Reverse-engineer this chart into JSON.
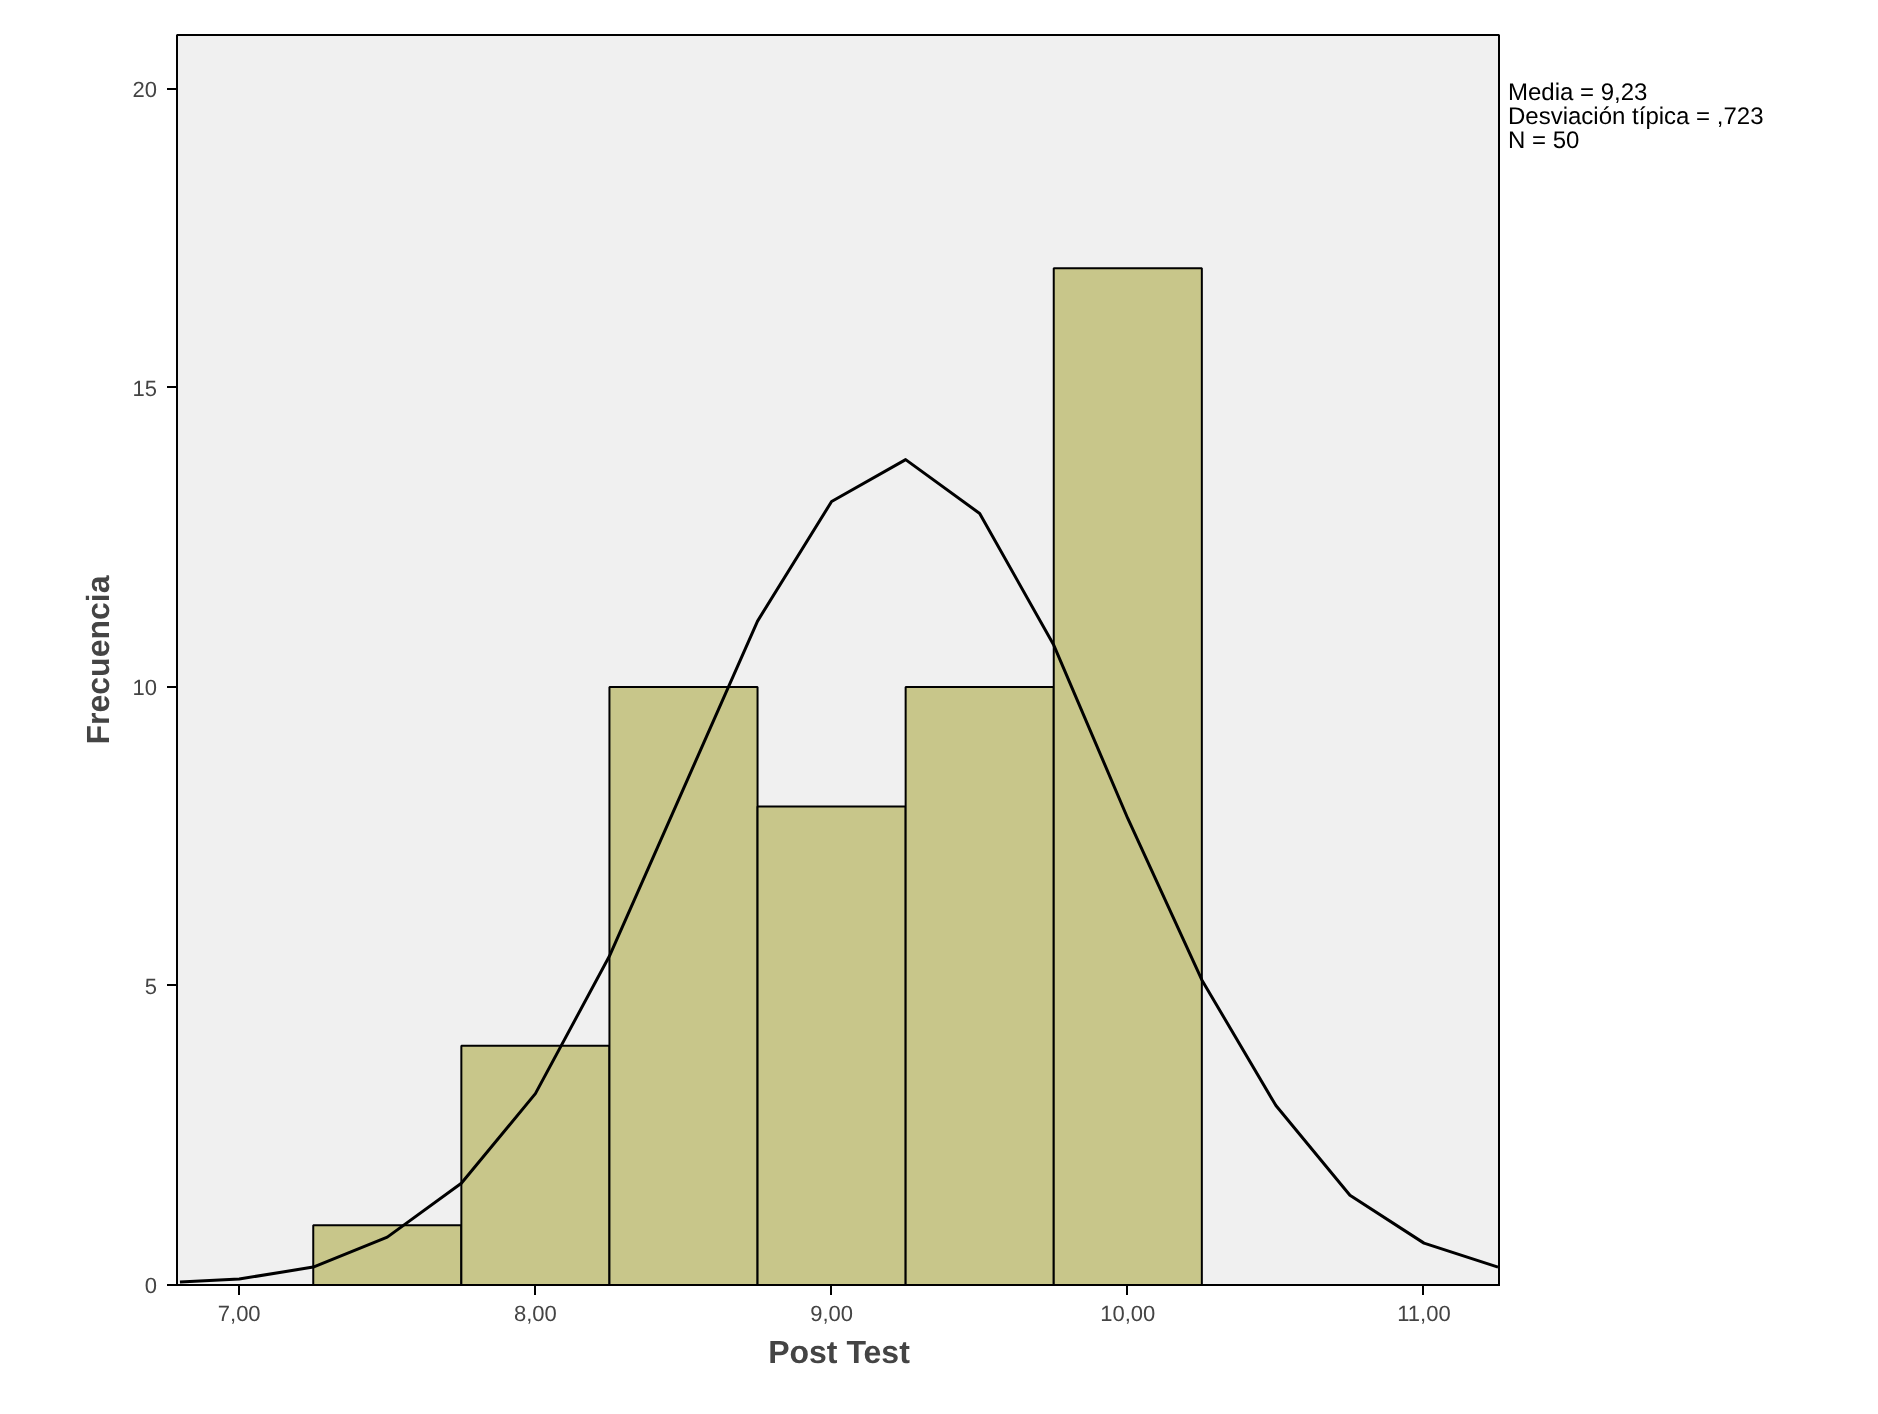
{
  "chart_data": {
    "type": "histogram",
    "xlabel": "Post Test",
    "ylabel": "Frecuencia",
    "bins": [
      7.25,
      7.75,
      8.25,
      8.75,
      9.25,
      9.75,
      10.25
    ],
    "values": [
      1,
      4,
      10,
      8,
      10,
      17
    ],
    "color": "#c8c68a",
    "series": [
      {
        "type": "line",
        "color": "#000000",
        "x": [
          6.8,
          7.0,
          7.25,
          7.5,
          7.75,
          8.0,
          8.25,
          8.5,
          8.75,
          9.0,
          9.25,
          9.5,
          9.75,
          10.0,
          10.25,
          10.5,
          10.75,
          11.0,
          11.25
        ],
        "values": [
          0.05,
          0.1,
          0.3,
          0.8,
          1.7,
          3.2,
          5.5,
          8.3,
          11.1,
          13.1,
          13.8,
          12.9,
          10.7,
          7.8,
          5.1,
          3.0,
          1.5,
          0.7,
          0.3
        ]
      }
    ],
    "xlim": [
      6.79,
      11.26
    ],
    "ylim": [
      0,
      20.9
    ],
    "xticks": [
      {
        "value": 7,
        "label": "7,00"
      },
      {
        "value": 8,
        "label": "8,00"
      },
      {
        "value": 9,
        "label": "9,00"
      },
      {
        "value": 10,
        "label": "10,00"
      },
      {
        "value": 11,
        "label": "11,00"
      }
    ],
    "yticks": [
      0,
      5,
      10,
      15,
      20
    ],
    "annotations": [
      "Media = 9,23",
      "Desviación típica = ,723",
      "N = 50"
    ],
    "grid": false
  }
}
